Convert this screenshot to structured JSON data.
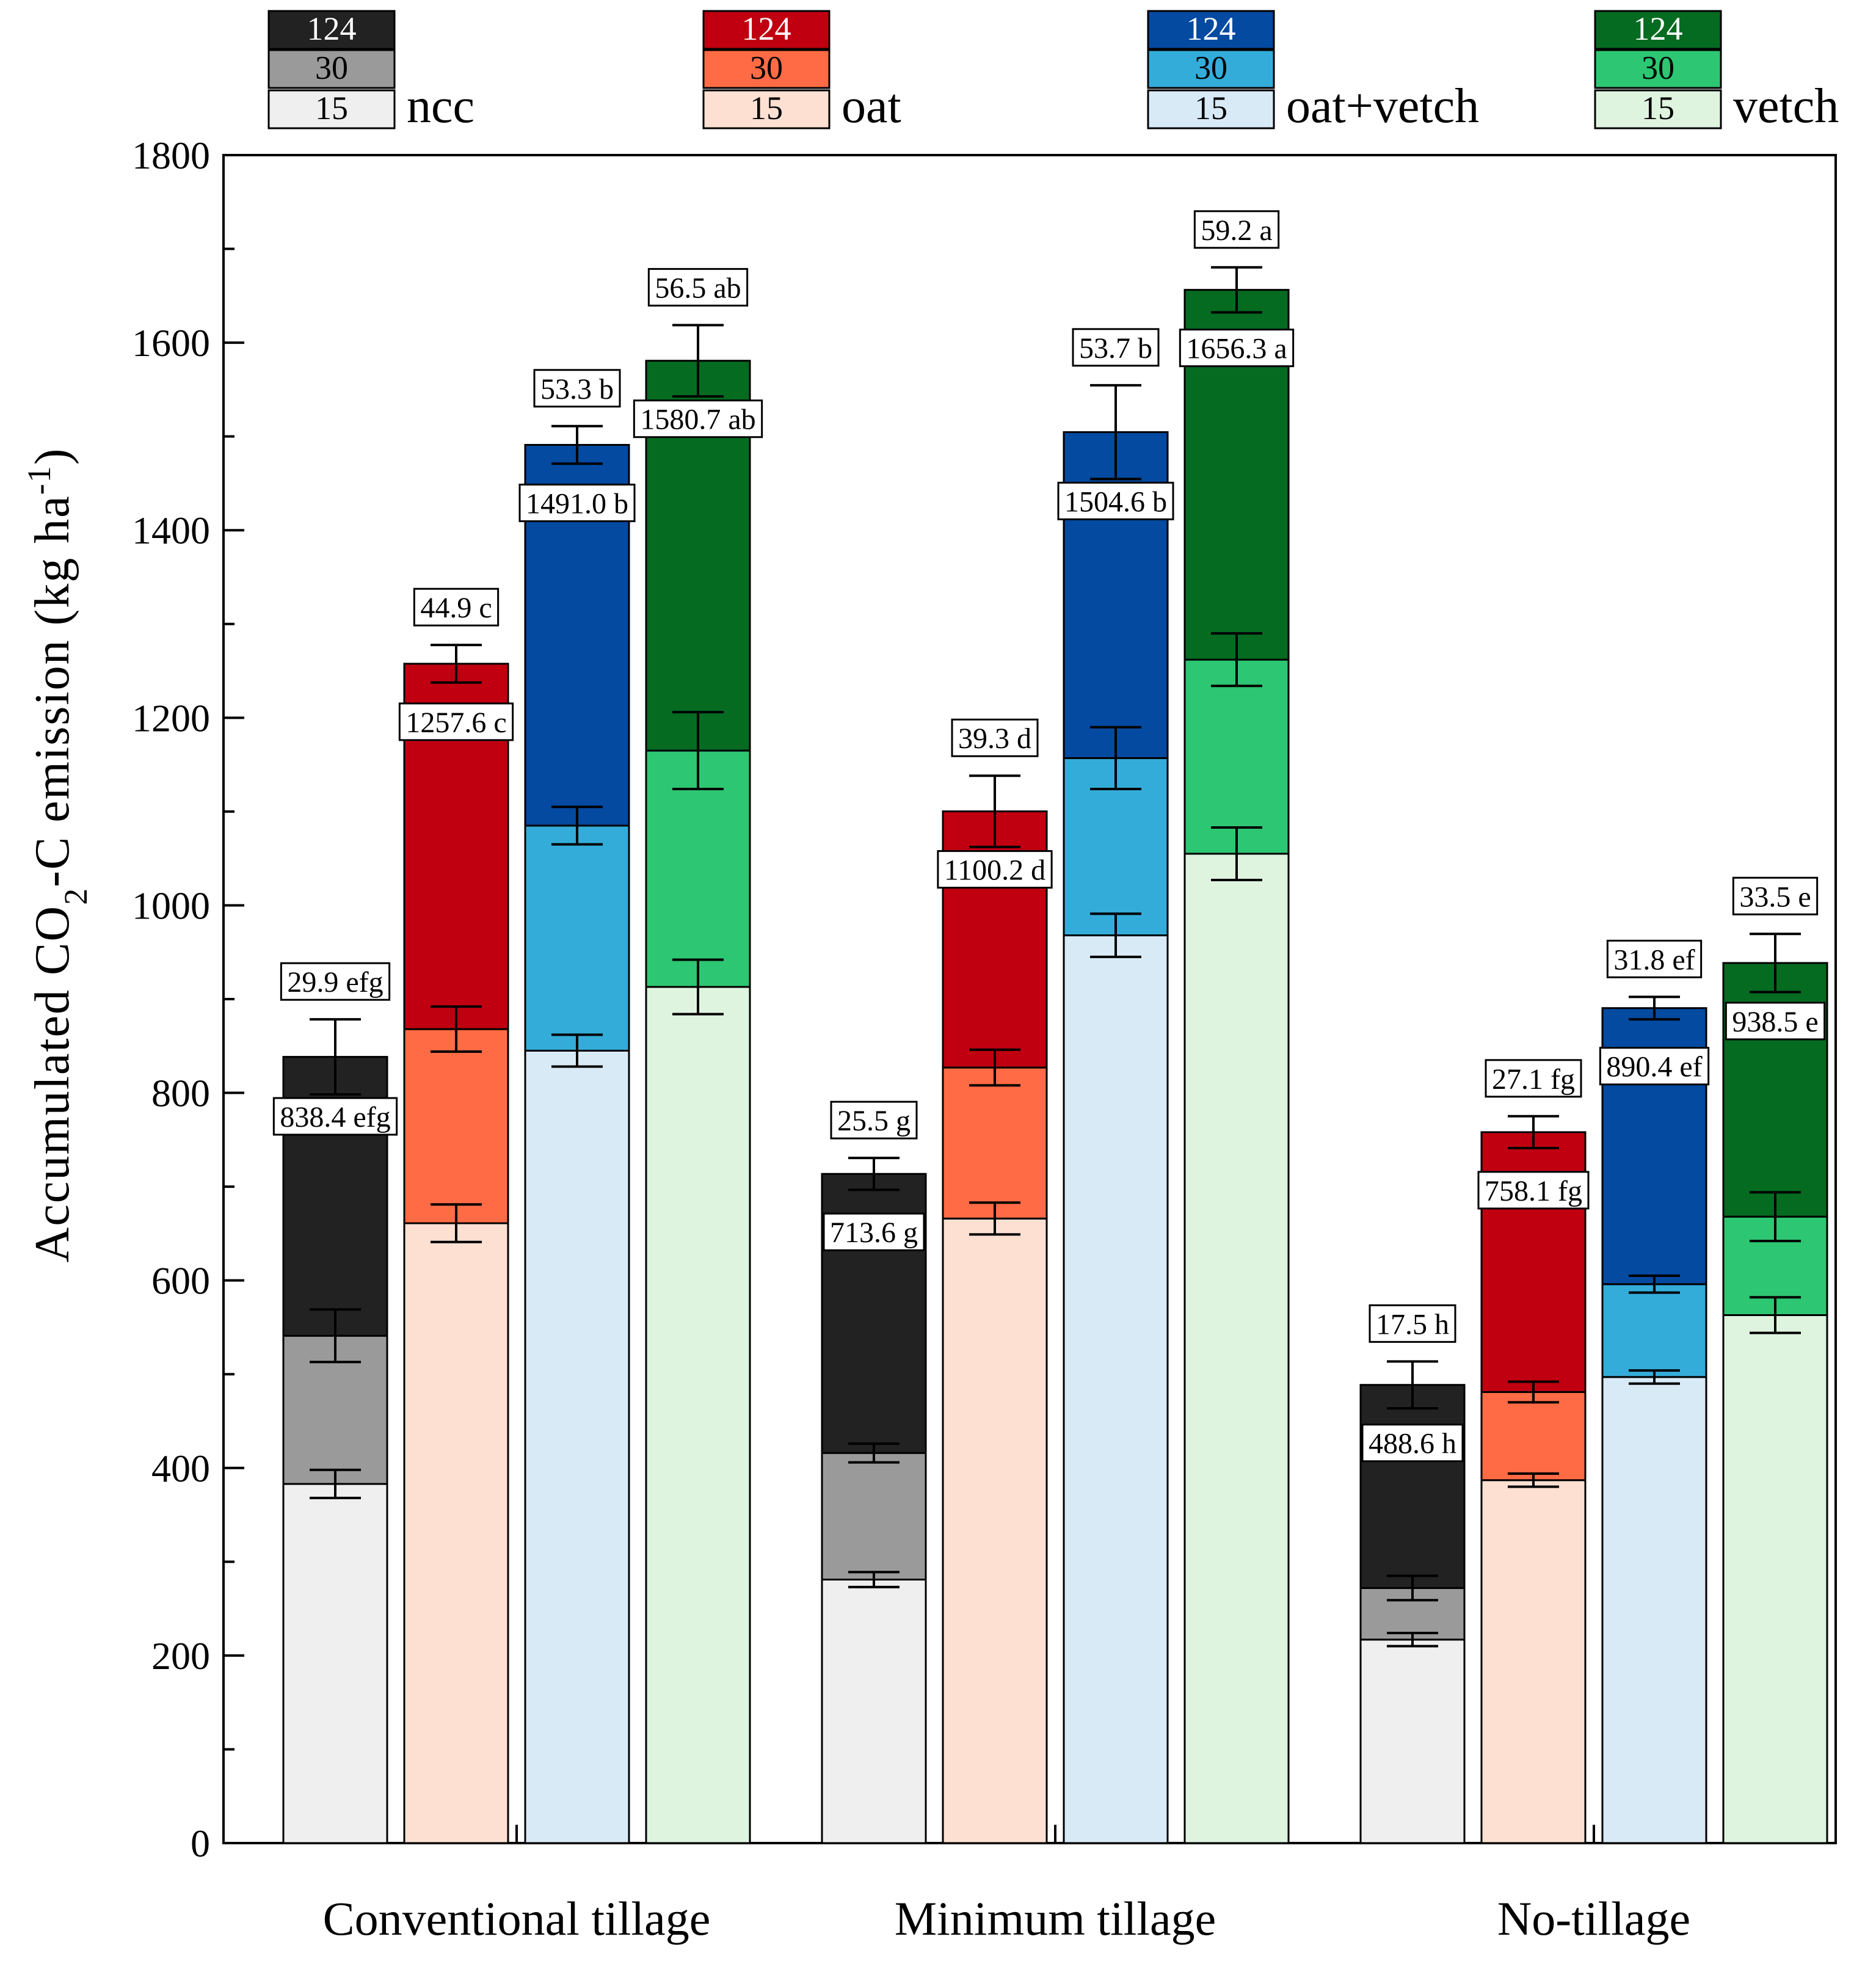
{
  "chart_data": {
    "type": "bar",
    "stacked": true,
    "ylabel": "Accumulated CO2-C emission (kg ha-1)",
    "ylabel_parts": {
      "pre": "Accumulated  CO",
      "sub": "2",
      "mid": "-C emission (kg ha",
      "sup": "-1",
      "post": ")"
    },
    "ylim": [
      0,
      1800
    ],
    "yticks": [
      0,
      200,
      400,
      600,
      800,
      1000,
      1200,
      1400,
      1600,
      1800
    ],
    "groups": [
      "Conventional tillage",
      "Minimum tillage",
      "No-tillage"
    ],
    "layer_days": [
      "15",
      "30",
      "124"
    ],
    "treatments": [
      {
        "name": "ncc",
        "colors": [
          "#efefef",
          "#9a9a9a",
          "#222222"
        ],
        "text_colors": [
          "#000000",
          "#000000",
          "#ffffff"
        ]
      },
      {
        "name": "oat",
        "colors": [
          "#fde0d2",
          "#ff6b45",
          "#c00010"
        ],
        "text_colors": [
          "#000000",
          "#000000",
          "#ffffff"
        ]
      },
      {
        "name": "oat+vetch",
        "colors": [
          "#d9eaf7",
          "#34acd9",
          "#034aa0"
        ],
        "text_colors": [
          "#000000",
          "#000000",
          "#ffffff"
        ]
      },
      {
        "name": "vetch",
        "colors": [
          "#def4df",
          "#2dc672",
          "#056b20"
        ],
        "text_colors": [
          "#000000",
          "#000000",
          "#ffffff"
        ]
      }
    ],
    "series": [
      {
        "group": "Conventional tillage",
        "treatment": "ncc",
        "cumulative": [
          383,
          541,
          838.4
        ],
        "errors": [
          15,
          28,
          40
        ],
        "total_label": "838.4 efg",
        "rate_label": "29.9 efg"
      },
      {
        "group": "Conventional tillage",
        "treatment": "oat",
        "cumulative": [
          661,
          868,
          1257.6
        ],
        "errors": [
          20,
          24,
          20
        ],
        "total_label": "1257.6 c",
        "rate_label": "44.9 c"
      },
      {
        "group": "Conventional tillage",
        "treatment": "oat+vetch",
        "cumulative": [
          845,
          1085,
          1491.0
        ],
        "errors": [
          17,
          20,
          20
        ],
        "total_label": "1491.0 b",
        "rate_label": "53.3 b"
      },
      {
        "group": "Conventional tillage",
        "treatment": "vetch",
        "cumulative": [
          913,
          1165,
          1580.7
        ],
        "errors": [
          29,
          41,
          38
        ],
        "total_label": "1580.7 ab",
        "rate_label": "56.5 ab"
      },
      {
        "group": "Minimum tillage",
        "treatment": "ncc",
        "cumulative": [
          281,
          416,
          713.6
        ],
        "errors": [
          8,
          10,
          17
        ],
        "total_label": "713.6 g",
        "rate_label": "25.5 g"
      },
      {
        "group": "Minimum tillage",
        "treatment": "oat",
        "cumulative": [
          666,
          827,
          1100.2
        ],
        "errors": [
          17,
          19,
          38
        ],
        "total_label": "1100.2 d",
        "rate_label": "39.3 d"
      },
      {
        "group": "Minimum tillage",
        "treatment": "oat+vetch",
        "cumulative": [
          968,
          1157,
          1504.6
        ],
        "errors": [
          23,
          33,
          50
        ],
        "total_label": "1504.6 b",
        "rate_label": "53.7 b"
      },
      {
        "group": "Minimum tillage",
        "treatment": "vetch",
        "cumulative": [
          1055,
          1262,
          1656.3
        ],
        "errors": [
          28,
          28,
          24
        ],
        "total_label": "1656.3 a",
        "rate_label": "59.2 a"
      },
      {
        "group": "No-tillage",
        "treatment": "ncc",
        "cumulative": [
          217,
          272,
          488.6
        ],
        "errors": [
          7,
          13,
          25
        ],
        "total_label": "488.6 h",
        "rate_label": "17.5 h"
      },
      {
        "group": "No-tillage",
        "treatment": "oat",
        "cumulative": [
          387,
          481,
          758.1
        ],
        "errors": [
          7,
          11,
          17
        ],
        "total_label": "758.1 fg",
        "rate_label": "27.1 fg"
      },
      {
        "group": "No-tillage",
        "treatment": "oat+vetch",
        "cumulative": [
          497,
          596,
          890.4
        ],
        "errors": [
          7,
          9,
          12
        ],
        "total_label": "890.4 ef",
        "rate_label": "31.8 ef"
      },
      {
        "group": "No-tillage",
        "treatment": "vetch",
        "cumulative": [
          563,
          668,
          938.5
        ],
        "errors": [
          19,
          26,
          31
        ],
        "total_label": "938.5 e",
        "rate_label": "33.5 e"
      }
    ]
  }
}
